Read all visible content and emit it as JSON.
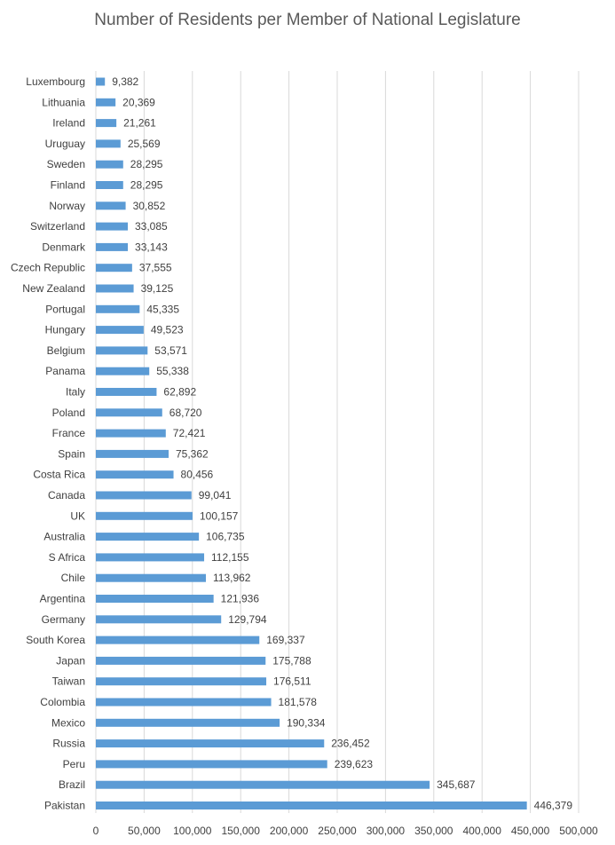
{
  "chart_data": {
    "type": "bar",
    "orientation": "horizontal",
    "title": "Number of Residents per Member of National Legislature",
    "xlabel": "",
    "ylabel": "",
    "xlim": [
      0,
      500000
    ],
    "x_ticks": [
      0,
      50000,
      100000,
      150000,
      200000,
      250000,
      300000,
      350000,
      400000,
      450000,
      500000
    ],
    "x_tick_labels": [
      "0",
      "50,000",
      "100,000",
      "150,000",
      "200,000",
      "250,000",
      "300,000",
      "350,000",
      "400,000",
      "450,000",
      "500,000"
    ],
    "grid": "vertical",
    "legend": "none",
    "bar_color": "#5B9BD5",
    "categories": [
      "Luxembourg",
      "Lithuania",
      "Ireland",
      "Uruguay",
      "Sweden",
      "Finland",
      "Norway",
      "Switzerland",
      "Denmark",
      "Czech Republic",
      "New Zealand",
      "Portugal",
      "Hungary",
      "Belgium",
      "Panama",
      "Italy",
      "Poland",
      "France",
      "Spain",
      "Costa Rica",
      "Canada",
      "UK",
      "Australia",
      "S Africa",
      "Chile",
      "Argentina",
      "Germany",
      "South Korea",
      "Japan",
      "Taiwan",
      "Colombia",
      "Mexico",
      "Russia",
      "Peru",
      "Brazil",
      "Pakistan"
    ],
    "values": [
      9382,
      20369,
      21261,
      25569,
      28295,
      28295,
      30852,
      33085,
      33143,
      37555,
      39125,
      45335,
      49523,
      53571,
      55338,
      62892,
      68720,
      72421,
      75362,
      80456,
      99041,
      100157,
      106735,
      112155,
      113962,
      121936,
      129794,
      169337,
      175788,
      176511,
      181578,
      190334,
      236452,
      239623,
      345687,
      446379
    ],
    "value_labels": [
      "9,382",
      "20,369",
      "21,261",
      "25,569",
      "28,295",
      "28,295",
      "30,852",
      "33,085",
      "33,143",
      "37,555",
      "39,125",
      "45,335",
      "49,523",
      "53,571",
      "55,338",
      "62,892",
      "68,720",
      "72,421",
      "75,362",
      "80,456",
      "99,041",
      "100,157",
      "106,735",
      "112,155",
      "113,962",
      "121,936",
      "129,794",
      "169,337",
      "175,788",
      "176,511",
      "181,578",
      "190,334",
      "236,452",
      "239,623",
      "345,687",
      "446,379"
    ]
  }
}
